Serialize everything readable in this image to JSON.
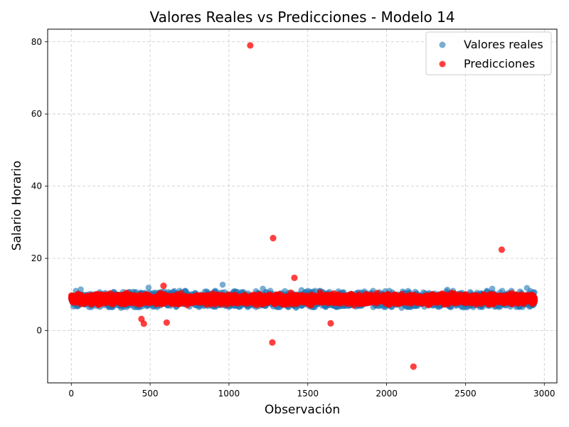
{
  "chart_data": {
    "type": "scatter",
    "title": "Valores Reales vs Predicciones - Modelo 14",
    "xlabel": "Observación",
    "ylabel": "Salario Horario",
    "xlim": [
      -150,
      3080
    ],
    "ylim": [
      -14.5,
      83.5
    ],
    "x_ticks": [
      0,
      500,
      1000,
      1500,
      2000,
      2500,
      3000
    ],
    "y_ticks": [
      0,
      20,
      40,
      60,
      80
    ],
    "grid": true,
    "legend_position": "top-right",
    "n_observations": 2940,
    "series": [
      {
        "name": "Valores reales",
        "color": "#1f77b4",
        "alpha": 0.6,
        "typical_range": [
          6.5,
          11.0
        ],
        "values": [
          {
            "x": 960,
            "y": 12.7
          },
          {
            "x": 490,
            "y": 11.9
          },
          {
            "x": 2890,
            "y": 11.8
          },
          {
            "x": 2670,
            "y": 11.6
          },
          {
            "x": 1215,
            "y": 11.6
          },
          {
            "x": 60,
            "y": 11.4
          },
          {
            "x": 2385,
            "y": 11.3
          },
          {
            "x": 1460,
            "y": 11.2
          },
          {
            "x": 315,
            "y": 6.3
          },
          {
            "x": 1425,
            "y": 6.3
          },
          {
            "x": 2095,
            "y": 6.3
          },
          {
            "x": 2490,
            "y": 6.4
          },
          {
            "x": 810,
            "y": 6.5
          }
        ]
      },
      {
        "name": "Predicciones",
        "color": "#ff0000",
        "alpha": 0.75,
        "typical_range": [
          7.0,
          10.5
        ],
        "values": [
          {
            "x": 1135,
            "y": 79.0
          },
          {
            "x": 1280,
            "y": 25.6
          },
          {
            "x": 2730,
            "y": 22.4
          },
          {
            "x": 1415,
            "y": 14.6
          },
          {
            "x": 585,
            "y": 12.4
          },
          {
            "x": 445,
            "y": 3.2
          },
          {
            "x": 460,
            "y": 1.9
          },
          {
            "x": 605,
            "y": 2.2
          },
          {
            "x": 1645,
            "y": 2.0
          },
          {
            "x": 1275,
            "y": -3.3
          },
          {
            "x": 2170,
            "y": -10.0
          }
        ]
      }
    ]
  }
}
